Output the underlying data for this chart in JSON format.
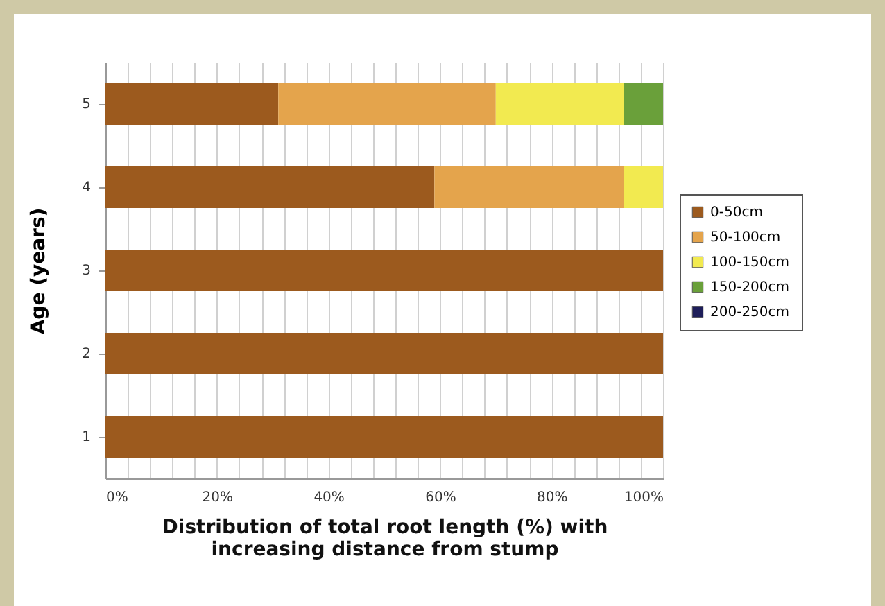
{
  "chart_data": {
    "type": "bar",
    "orientation": "horizontal",
    "stacked": true,
    "xlabel": "Distribution of total root length (%) with increasing distance from stump",
    "ylabel": "Age (years)",
    "categories": [
      "5",
      "4",
      "3",
      "2",
      "1"
    ],
    "series": [
      {
        "name": "0-50cm",
        "color": "#9c5a1e",
        "values": [
          31,
          59,
          100,
          100,
          100
        ]
      },
      {
        "name": "50-100cm",
        "color": "#e4a44c",
        "values": [
          39,
          34,
          0,
          0,
          0
        ]
      },
      {
        "name": "100-150cm",
        "color": "#f2ea50",
        "values": [
          23,
          7,
          0,
          0,
          0
        ]
      },
      {
        "name": "150-200cm",
        "color": "#6aa03a",
        "values": [
          7,
          0,
          0,
          0,
          0
        ]
      },
      {
        "name": "200-250cm",
        "color": "#1e1e5a",
        "values": [
          0,
          0,
          0,
          0,
          0
        ]
      }
    ],
    "xlim": [
      0,
      100
    ],
    "xticks": [
      {
        "value": 0,
        "label": "0%"
      },
      {
        "value": 4,
        "label": null
      },
      {
        "value": 8,
        "label": null
      },
      {
        "value": 12,
        "label": null
      },
      {
        "value": 16,
        "label": null
      },
      {
        "value": 20,
        "label": "20%"
      },
      {
        "value": 24,
        "label": null
      },
      {
        "value": 28,
        "label": null
      },
      {
        "value": 32,
        "label": null
      },
      {
        "value": 36,
        "label": null
      },
      {
        "value": 40,
        "label": "40%"
      },
      {
        "value": 44,
        "label": null
      },
      {
        "value": 48,
        "label": null
      },
      {
        "value": 52,
        "label": null
      },
      {
        "value": 56,
        "label": null
      },
      {
        "value": 60,
        "label": "60%"
      },
      {
        "value": 64,
        "label": null
      },
      {
        "value": 68,
        "label": null
      },
      {
        "value": 72,
        "label": null
      },
      {
        "value": 76,
        "label": null
      },
      {
        "value": 80,
        "label": "80%"
      },
      {
        "value": 84,
        "label": null
      },
      {
        "value": 88,
        "label": null
      },
      {
        "value": 92,
        "label": null
      },
      {
        "value": 96,
        "label": null
      },
      {
        "value": 100,
        "label": "100%"
      }
    ],
    "grid": "x",
    "legend": "right"
  }
}
